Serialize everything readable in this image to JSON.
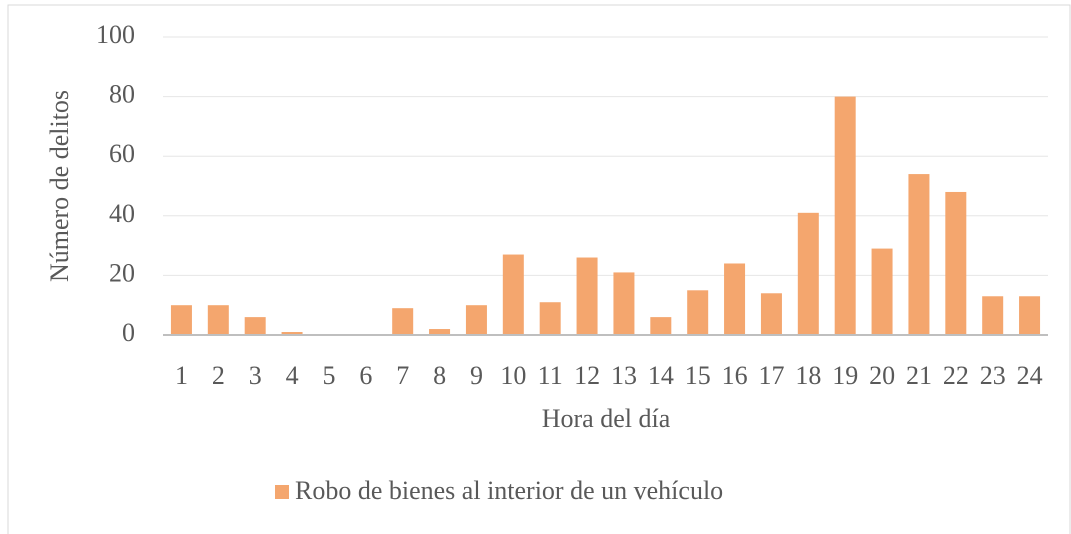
{
  "chart_data": {
    "type": "bar",
    "x_label": "Hora del día",
    "y_label": "Número de delitos",
    "categories": [
      "1",
      "2",
      "3",
      "4",
      "5",
      "6",
      "7",
      "8",
      "9",
      "10",
      "11",
      "12",
      "13",
      "14",
      "15",
      "16",
      "17",
      "18",
      "19",
      "20",
      "21",
      "22",
      "23",
      "24"
    ],
    "series": [
      {
        "name": "Robo de bienes al interior de un vehículo",
        "color": "#f4a66e",
        "values": [
          10,
          10,
          6,
          1,
          0,
          0,
          9,
          2,
          10,
          27,
          11,
          26,
          21,
          6,
          15,
          24,
          14,
          41,
          80,
          29,
          54,
          48,
          13,
          13
        ]
      }
    ],
    "ylim": [
      0,
      100
    ],
    "yticks": [
      0,
      20,
      40,
      60,
      80,
      100
    ],
    "grid": true,
    "legend": "bottom"
  }
}
